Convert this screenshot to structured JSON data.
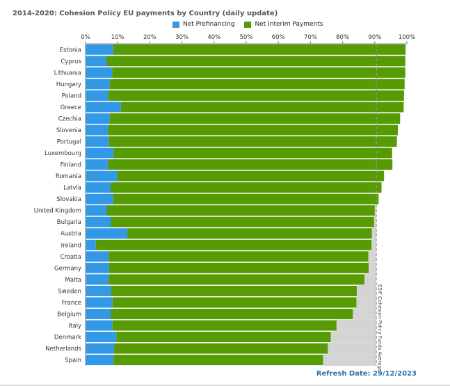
{
  "chart_data": {
    "type": "bar",
    "orientation": "horizontal",
    "stacked": true,
    "title": "2014-2020: Cohesion Policy EU payments by Country (daily update)",
    "categories": [
      "Estonia",
      "Cyprus",
      "Lithuania",
      "Hungary",
      "Poland",
      "Greece",
      "Czechia",
      "Slovenia",
      "Portugal",
      "Luxembourg",
      "Finland",
      "Romania",
      "Latvia",
      "Slovakia",
      "United Kingdom",
      "Bulgaria",
      "Austria",
      "Ireland",
      "Croatia",
      "Germany",
      "Malta",
      "Sweden",
      "France",
      "Belgium",
      "Italy",
      "Denmark",
      "Netherlands",
      "Spain"
    ],
    "series": [
      {
        "name": "Net Prefinancing",
        "color": "#3399e6",
        "values": [
          8.6,
          6.5,
          8.3,
          7.5,
          7.0,
          11.0,
          7.5,
          7.0,
          7.2,
          8.7,
          7.0,
          9.8,
          7.8,
          8.6,
          6.6,
          7.9,
          13.0,
          3.2,
          7.2,
          7.3,
          7.2,
          8.0,
          8.4,
          7.8,
          8.4,
          9.6,
          8.9,
          8.7
        ]
      },
      {
        "name": "Net Interim Payments",
        "color": "#569a04",
        "values": [
          91.0,
          93.0,
          91.2,
          91.8,
          92.1,
          88.0,
          90.4,
          90.2,
          89.7,
          86.7,
          88.5,
          83.1,
          84.3,
          82.6,
          83.4,
          81.9,
          76.1,
          85.8,
          80.8,
          80.8,
          79.6,
          76.4,
          75.9,
          75.4,
          69.7,
          66.7,
          66.5,
          65.2
        ]
      }
    ],
    "average": {
      "label": "ESIF Cohesion Policy Funds Average",
      "value": 90.5
    },
    "x_ticks": [
      "0%",
      "10%",
      "20%",
      "30%",
      "40%",
      "50%",
      "60%",
      "70%",
      "80%",
      "90%",
      "100%"
    ],
    "xlim": [
      0,
      100
    ],
    "legend_position": "top",
    "grid": false
  },
  "footer": {
    "refresh_label": "Refresh Date: 29/12/2023"
  }
}
